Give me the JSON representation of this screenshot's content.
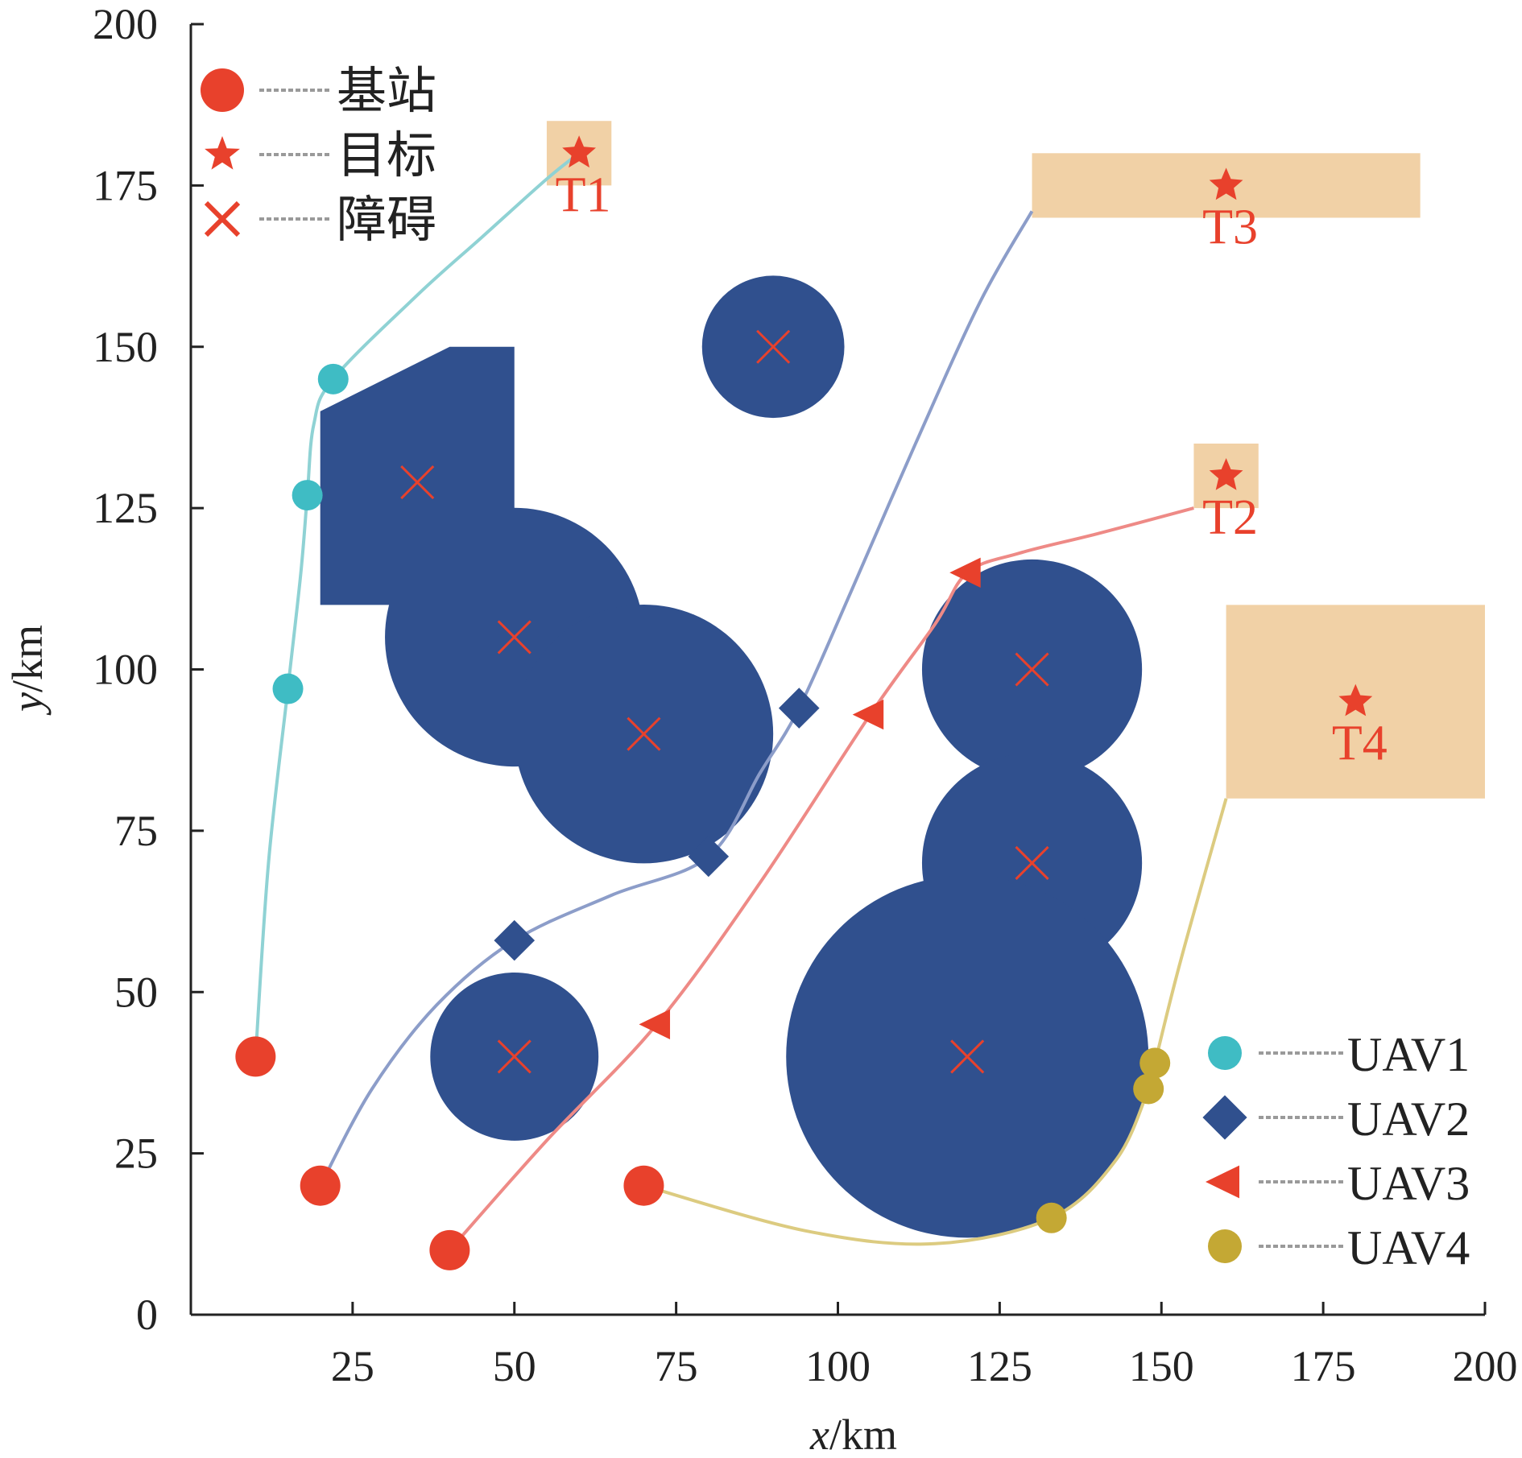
{
  "chart_data": {
    "type": "scatter",
    "xlabel": {
      "italic": "x",
      "rest": "/km"
    },
    "ylabel": {
      "italic": "y",
      "rest": "/km"
    },
    "xlim": [
      0,
      200
    ],
    "ylim": [
      0,
      200
    ],
    "xticks": [
      25,
      50,
      75,
      100,
      125,
      150,
      175,
      200
    ],
    "yticks": [
      0,
      25,
      50,
      75,
      100,
      125,
      150,
      175,
      200
    ],
    "grid": false,
    "colors": {
      "obstacle": "#30508e",
      "target_zone": "#f1d1a6",
      "red": "#e8412c",
      "uav1": "#3fbcc4",
      "uav2": "#30508e",
      "uav3": "#e8412c",
      "uav4": "#c4a834",
      "path1": "#8fd2d4",
      "path2": "#8c9dc9",
      "path3": "#ee8a86",
      "path4": "#dccb80"
    },
    "legend_top": {
      "placement": "top-left",
      "items": [
        {
          "marker": "circle",
          "label": "基站"
        },
        {
          "marker": "star",
          "label": "目标"
        },
        {
          "marker": "cross",
          "label": "障碍"
        }
      ]
    },
    "legend_bottom": {
      "placement": "bottom-right",
      "items": [
        {
          "marker": "circle",
          "color_key": "uav1",
          "label": "UAV1"
        },
        {
          "marker": "diamond",
          "color_key": "uav2",
          "label": "UAV2"
        },
        {
          "marker": "triangle",
          "color_key": "uav3",
          "label": "UAV3"
        },
        {
          "marker": "circle",
          "color_key": "uav4",
          "label": "UAV4"
        }
      ]
    },
    "obstacles": {
      "circles": [
        {
          "cx": 90,
          "cy": 150,
          "r": 11
        },
        {
          "cx": 50,
          "cy": 105,
          "r": 20
        },
        {
          "cx": 70,
          "cy": 90,
          "r": 20
        },
        {
          "cx": 50,
          "cy": 40,
          "r": 13
        },
        {
          "cx": 130,
          "cy": 100,
          "r": 17
        },
        {
          "cx": 130,
          "cy": 70,
          "r": 17
        },
        {
          "cx": 120,
          "cy": 40,
          "r": 28
        }
      ],
      "polygon": [
        [
          20,
          140
        ],
        [
          40,
          150
        ],
        [
          50,
          150
        ],
        [
          50,
          110
        ],
        [
          20,
          110
        ]
      ],
      "centers": [
        [
          35,
          129
        ],
        [
          50,
          105
        ],
        [
          70,
          90
        ],
        [
          90,
          150
        ],
        [
          50,
          40
        ],
        [
          130,
          100
        ],
        [
          130,
          70
        ],
        [
          120,
          40
        ]
      ]
    },
    "targets": [
      {
        "label": "T1",
        "x": 60,
        "y": 180,
        "zone": [
          55,
          175,
          65,
          185
        ]
      },
      {
        "label": "T2",
        "x": 160,
        "y": 130,
        "zone": [
          155,
          125,
          165,
          135
        ]
      },
      {
        "label": "T3",
        "x": 160,
        "y": 175,
        "zone": [
          130,
          170,
          190,
          180
        ]
      },
      {
        "label": "T4",
        "x": 180,
        "y": 95,
        "zone": [
          160,
          80,
          200,
          110
        ]
      }
    ],
    "bases": [
      [
        10,
        40
      ],
      [
        20,
        20
      ],
      [
        40,
        10
      ],
      [
        70,
        20
      ]
    ],
    "series": [
      {
        "name": "UAV1",
        "color_key": "uav1",
        "path_color_key": "path1",
        "marker": "circle",
        "path": [
          [
            10,
            40
          ],
          [
            12,
            70
          ],
          [
            15,
            97
          ],
          [
            17,
            115
          ],
          [
            18,
            127
          ],
          [
            19,
            138
          ],
          [
            22,
            145
          ],
          [
            35,
            158
          ],
          [
            45,
            167
          ],
          [
            55,
            176
          ],
          [
            60,
            180
          ]
        ],
        "markers": [
          [
            15,
            97
          ],
          [
            18,
            127
          ],
          [
            22,
            145
          ]
        ]
      },
      {
        "name": "UAV2",
        "color_key": "uav2",
        "path_color_key": "path2",
        "marker": "diamond",
        "path": [
          [
            20,
            20
          ],
          [
            28,
            35
          ],
          [
            38,
            48
          ],
          [
            50,
            58
          ],
          [
            65,
            65
          ],
          [
            80,
            71
          ],
          [
            88,
            84
          ],
          [
            94,
            94
          ],
          [
            102,
            112
          ],
          [
            112,
            135
          ],
          [
            122,
            157
          ],
          [
            130,
            171
          ]
        ],
        "markers": [
          [
            50,
            58
          ],
          [
            80,
            71
          ],
          [
            94,
            94
          ]
        ]
      },
      {
        "name": "UAV3",
        "color_key": "uav3",
        "path_color_key": "path3",
        "marker": "triangle",
        "path": [
          [
            40,
            10
          ],
          [
            55,
            27
          ],
          [
            72,
            45
          ],
          [
            88,
            67
          ],
          [
            105,
            93
          ],
          [
            115,
            107
          ],
          [
            120,
            115
          ],
          [
            128,
            118
          ],
          [
            140,
            121
          ],
          [
            155,
            125
          ]
        ],
        "markers": [
          [
            72,
            45
          ],
          [
            105,
            93
          ],
          [
            120,
            115
          ]
        ]
      },
      {
        "name": "UAV4",
        "color_key": "uav4",
        "path_color_key": "path4",
        "marker": "circle",
        "path": [
          [
            70,
            20
          ],
          [
            95,
            13
          ],
          [
            115,
            11
          ],
          [
            133,
            15
          ],
          [
            143,
            24
          ],
          [
            148,
            35
          ],
          [
            149,
            39
          ],
          [
            153,
            55
          ],
          [
            160,
            80
          ]
        ],
        "markers": [
          [
            133,
            15
          ],
          [
            148,
            35
          ],
          [
            149,
            39
          ]
        ]
      }
    ]
  }
}
